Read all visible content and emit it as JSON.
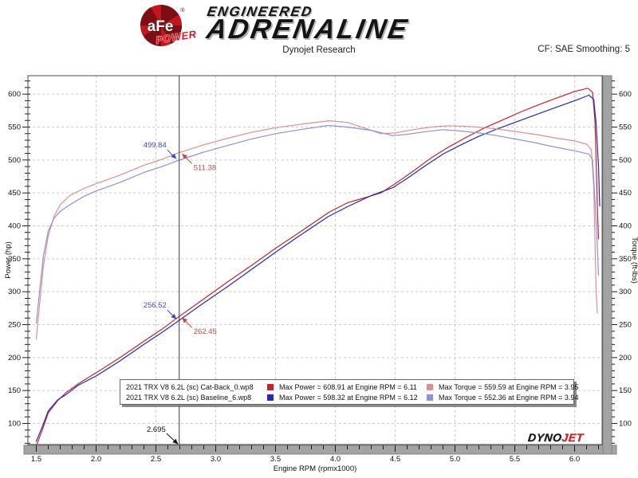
{
  "header": {
    "brand": {
      "circle_text": "aFe",
      "power_text": "POWER",
      "registered": "®",
      "line1": "ENGINEERED",
      "line2": "ADRENALINE"
    },
    "subtitle": "Dynojet Research",
    "correction": "CF: SAE Smoothing: 5"
  },
  "watermark": {
    "part1": "DYNO",
    "part2": "JET"
  },
  "chart_data": {
    "type": "line",
    "title": "Dynojet Research",
    "xlabel": "Engine RPM (rpmx1000)",
    "ylabel_left": "Power (hp)",
    "ylabel_right": "Torque (ft-lbs)",
    "xlim": [
      1.43,
      6.23
    ],
    "ylim": [
      68,
      628
    ],
    "x_major_ticks": [
      1.5,
      2.0,
      2.5,
      3.0,
      3.5,
      4.0,
      4.5,
      5.0,
      5.5,
      6.0
    ],
    "x_minor_step": 0.1,
    "x_minor_range": [
      1.5,
      6.2
    ],
    "y_major_ticks": [
      100,
      150,
      200,
      250,
      300,
      350,
      400,
      450,
      500,
      550,
      600
    ],
    "y_minor_step": 10,
    "y_minor_range": [
      70,
      620
    ],
    "grid": "dashed-major",
    "legend_position": "inside-bottom-center",
    "series": [
      {
        "id": "power-catback",
        "label": "2021 TRX V8 6.2L (sc) Cat-Back_0.wp8 Power",
        "color": "#cc2027",
        "axis": "hp",
        "points": [
          [
            1.5,
            66
          ],
          [
            1.55,
            90
          ],
          [
            1.6,
            116
          ],
          [
            1.68,
            135
          ],
          [
            1.75,
            147
          ],
          [
            1.85,
            160
          ],
          [
            2.0,
            177
          ],
          [
            2.2,
            200
          ],
          [
            2.4,
            225
          ],
          [
            2.55,
            243
          ],
          [
            2.695,
            262.45
          ],
          [
            2.9,
            289
          ],
          [
            3.1,
            315
          ],
          [
            3.3,
            340
          ],
          [
            3.5,
            366
          ],
          [
            3.7,
            390
          ],
          [
            3.95,
            421
          ],
          [
            4.1,
            435
          ],
          [
            4.25,
            443
          ],
          [
            4.38,
            450
          ],
          [
            4.5,
            464
          ],
          [
            4.65,
            483
          ],
          [
            4.8,
            503
          ],
          [
            4.95,
            520
          ],
          [
            5.1,
            535
          ],
          [
            5.25,
            549
          ],
          [
            5.4,
            561
          ],
          [
            5.55,
            573
          ],
          [
            5.7,
            584
          ],
          [
            5.85,
            594
          ],
          [
            6.0,
            604
          ],
          [
            6.11,
            608.91
          ],
          [
            6.15,
            603
          ],
          [
            6.17,
            560
          ],
          [
            6.18,
            500
          ],
          [
            6.19,
            430
          ],
          [
            6.2,
            380
          ]
        ]
      },
      {
        "id": "power-baseline",
        "label": "2021 TRX V8 6.2L (sc) Baseline_6.wp8 Power",
        "color": "#2328c6",
        "axis": "hp",
        "points": [
          [
            1.5,
            73
          ],
          [
            1.55,
            95
          ],
          [
            1.6,
            119
          ],
          [
            1.68,
            136
          ],
          [
            1.75,
            144
          ],
          [
            1.85,
            158
          ],
          [
            2.0,
            172
          ],
          [
            2.2,
            195
          ],
          [
            2.4,
            220
          ],
          [
            2.55,
            238
          ],
          [
            2.695,
            256.52
          ],
          [
            2.9,
            283
          ],
          [
            3.1,
            308
          ],
          [
            3.3,
            334
          ],
          [
            3.5,
            360
          ],
          [
            3.7,
            385
          ],
          [
            3.94,
            414
          ],
          [
            4.1,
            429
          ],
          [
            4.3,
            446
          ],
          [
            4.48,
            458
          ],
          [
            4.6,
            472
          ],
          [
            4.75,
            491
          ],
          [
            4.9,
            509
          ],
          [
            5.05,
            523
          ],
          [
            5.2,
            536
          ],
          [
            5.35,
            547
          ],
          [
            5.5,
            557
          ],
          [
            5.65,
            567
          ],
          [
            5.8,
            577
          ],
          [
            6.0,
            590
          ],
          [
            6.12,
            598.32
          ],
          [
            6.16,
            592
          ],
          [
            6.18,
            555
          ],
          [
            6.2,
            490
          ],
          [
            6.21,
            430
          ]
        ]
      },
      {
        "id": "torque-catback",
        "label": "2021 TRX V8 6.2L (sc) Cat-Back_0.wp8 Torque",
        "color": "#e18d8d",
        "axis": "ft-lbs",
        "points": [
          [
            1.5,
            228
          ],
          [
            1.53,
            285
          ],
          [
            1.56,
            340
          ],
          [
            1.6,
            385
          ],
          [
            1.65,
            415
          ],
          [
            1.7,
            432
          ],
          [
            1.78,
            446
          ],
          [
            1.9,
            457
          ],
          [
            2.0,
            464
          ],
          [
            2.2,
            477
          ],
          [
            2.4,
            492
          ],
          [
            2.55,
            501
          ],
          [
            2.695,
            511.38
          ],
          [
            2.9,
            523
          ],
          [
            3.1,
            533
          ],
          [
            3.3,
            542
          ],
          [
            3.5,
            549
          ],
          [
            3.7,
            554
          ],
          [
            3.95,
            559.59
          ],
          [
            4.1,
            557
          ],
          [
            4.25,
            548
          ],
          [
            4.38,
            540
          ],
          [
            4.5,
            541
          ],
          [
            4.65,
            546
          ],
          [
            4.8,
            550
          ],
          [
            4.95,
            552
          ],
          [
            5.1,
            551
          ],
          [
            5.25,
            549
          ],
          [
            5.4,
            546
          ],
          [
            5.55,
            542
          ],
          [
            5.7,
            538
          ],
          [
            5.85,
            533
          ],
          [
            6.0,
            529
          ],
          [
            6.1,
            524
          ],
          [
            6.14,
            516
          ],
          [
            6.16,
            460
          ],
          [
            6.17,
            380
          ],
          [
            6.18,
            300
          ],
          [
            6.19,
            268
          ]
        ]
      },
      {
        "id": "torque-baseline",
        "label": "2021 TRX V8 6.2L (sc) Baseline_6.wp8 Torque",
        "color": "#8d91e0",
        "axis": "ft-lbs",
        "points": [
          [
            1.5,
            252
          ],
          [
            1.53,
            305
          ],
          [
            1.56,
            355
          ],
          [
            1.6,
            392
          ],
          [
            1.65,
            412
          ],
          [
            1.7,
            422
          ],
          [
            1.78,
            432
          ],
          [
            1.9,
            445
          ],
          [
            2.0,
            453
          ],
          [
            2.2,
            466
          ],
          [
            2.4,
            481
          ],
          [
            2.55,
            490
          ],
          [
            2.695,
            499.84
          ],
          [
            2.9,
            512
          ],
          [
            3.1,
            522
          ],
          [
            3.3,
            532
          ],
          [
            3.5,
            540
          ],
          [
            3.7,
            546
          ],
          [
            3.94,
            552.36
          ],
          [
            4.1,
            550
          ],
          [
            4.3,
            545
          ],
          [
            4.48,
            537
          ],
          [
            4.6,
            539
          ],
          [
            4.75,
            543
          ],
          [
            4.9,
            546
          ],
          [
            5.05,
            544
          ],
          [
            5.2,
            541
          ],
          [
            5.35,
            537
          ],
          [
            5.5,
            532
          ],
          [
            5.65,
            527
          ],
          [
            5.8,
            521
          ],
          [
            6.0,
            514
          ],
          [
            6.12,
            509
          ],
          [
            6.15,
            500
          ],
          [
            6.17,
            440
          ],
          [
            6.19,
            370
          ],
          [
            6.2,
            325
          ]
        ]
      }
    ],
    "cursor": {
      "x": 2.695,
      "x_label": "2.695",
      "callouts": [
        {
          "text": "499.84",
          "value": 499.84,
          "color": "#4646c8",
          "side": "above-left"
        },
        {
          "text": "511.38",
          "value": 511.38,
          "color": "#c84646",
          "side": "below-right"
        },
        {
          "text": "256.52",
          "value": 256.52,
          "color": "#4646c8",
          "side": "above-left"
        },
        {
          "text": "262.45",
          "value": 262.45,
          "color": "#c84646",
          "side": "below-right"
        }
      ]
    },
    "legend": {
      "rows": [
        {
          "file": "2021 TRX V8 6.2L (sc) Cat-Back_0.wp8",
          "power_color": "#cc2027",
          "power_text": "Max Power = 608.91 at Engine RPM = 6.11",
          "torque_color": "#e18d8d",
          "torque_text": "Max Torque = 559.59 at Engine RPM = 3.95"
        },
        {
          "file": "2021 TRX V8 6.2L (sc) Baseline_6.wp8",
          "power_color": "#2328c6",
          "power_text": "Max Power = 598.32 at Engine RPM = 6.12",
          "torque_color": "#8d91e0",
          "torque_text": "Max Torque = 552.36 at Engine RPM = 3.94"
        }
      ]
    }
  }
}
